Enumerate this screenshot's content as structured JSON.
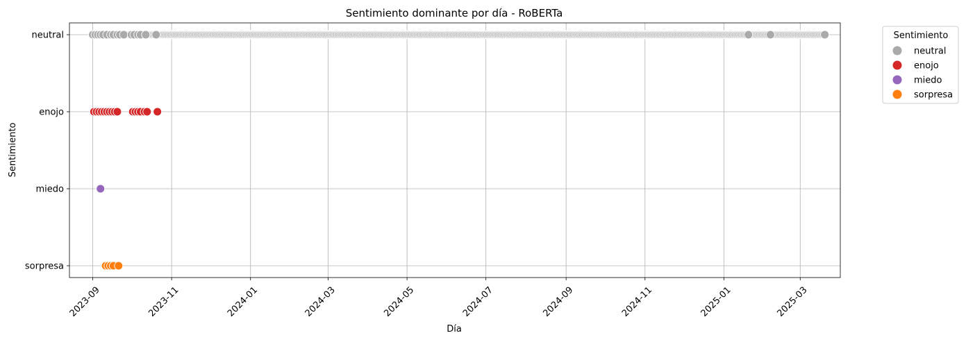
{
  "chart_data": {
    "type": "scatter",
    "title": "Sentimiento dominante por día - RoBERTa",
    "xlabel": "Día",
    "ylabel": "Sentimiento",
    "x_type": "date",
    "xlim": [
      "2023-08-14",
      "2025-04-01"
    ],
    "x_ticks": [
      "2023-09",
      "2023-11",
      "2024-01",
      "2024-03",
      "2024-05",
      "2024-07",
      "2024-09",
      "2024-11",
      "2025-01",
      "2025-03"
    ],
    "y_categories": [
      "neutral",
      "enojo",
      "miedo",
      "sorpresa"
    ],
    "grid": true,
    "legend": {
      "title": "Sentimiento",
      "placement": "outside-top-right"
    },
    "series": [
      {
        "name": "neutral",
        "color": "#aaaaaa",
        "y": "neutral",
        "x_ranges": [
          [
            "2023-09-01",
            "2025-03-20"
          ]
        ],
        "x": [
          "2023-09-01",
          "2023-09-03",
          "2023-09-05",
          "2023-09-07",
          "2023-09-09",
          "2023-09-12",
          "2023-09-15",
          "2023-09-17",
          "2023-09-20",
          "2023-09-22",
          "2023-09-25",
          "2023-10-01",
          "2023-10-03",
          "2023-10-06",
          "2023-10-08",
          "2023-10-12",
          "2023-10-20",
          "2025-01-20",
          "2025-02-05",
          "2025-02-06",
          "2025-03-20"
        ]
      },
      {
        "name": "enojo",
        "color": "#d62728",
        "y": "enojo",
        "x": [
          "2023-09-02",
          "2023-09-04",
          "2023-09-06",
          "2023-09-08",
          "2023-09-10",
          "2023-09-12",
          "2023-09-14",
          "2023-09-16",
          "2023-09-18",
          "2023-09-20",
          "2023-10-02",
          "2023-10-04",
          "2023-10-06",
          "2023-10-08",
          "2023-10-11",
          "2023-10-13",
          "2023-10-21"
        ]
      },
      {
        "name": "miedo",
        "color": "#9467bd",
        "y": "miedo",
        "x": [
          "2023-09-07"
        ]
      },
      {
        "name": "sorpresa",
        "color": "#ff7f0e",
        "y": "sorpresa",
        "x": [
          "2023-09-11",
          "2023-09-13",
          "2023-09-15",
          "2023-09-17",
          "2023-09-21"
        ]
      }
    ]
  }
}
